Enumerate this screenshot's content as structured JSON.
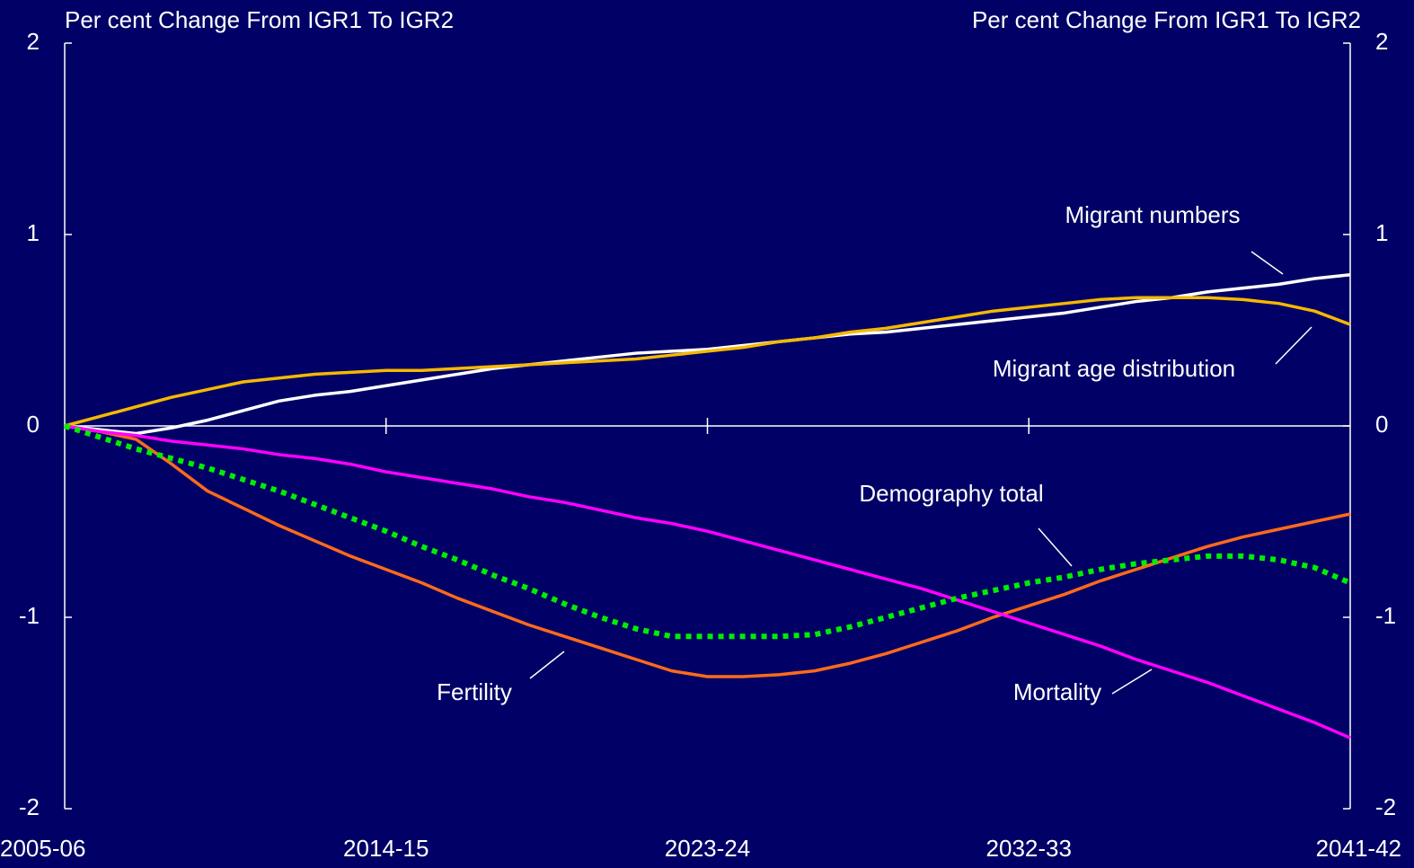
{
  "chart_data": {
    "type": "line",
    "y_label": "Per cent Change From IGR1 To IGR2",
    "y2_label": "Per cent Change From IGR1 To IGR2",
    "categories": [
      "2005-06",
      null,
      null,
      null,
      null,
      null,
      null,
      null,
      null,
      "2014-15",
      null,
      null,
      null,
      null,
      null,
      null,
      null,
      null,
      "2023-24",
      null,
      null,
      null,
      null,
      null,
      null,
      null,
      null,
      "2032-33",
      null,
      null,
      null,
      null,
      null,
      null,
      null,
      null,
      "2041-42"
    ],
    "ylim": [
      -2,
      2
    ],
    "yticks": [
      -2,
      -1,
      0,
      1,
      2
    ],
    "y2lim": [
      -2,
      2
    ],
    "y2ticks": [
      -2,
      -1,
      0,
      1,
      2
    ],
    "series": [
      {
        "name": "Migrant numbers",
        "color": "#ffffff",
        "dash": false,
        "values": [
          0,
          -0.02,
          -0.04,
          -0.01,
          0.03,
          0.08,
          0.13,
          0.16,
          0.18,
          0.21,
          0.24,
          0.27,
          0.3,
          0.32,
          0.34,
          0.36,
          0.38,
          0.39,
          0.4,
          0.42,
          0.44,
          0.46,
          0.48,
          0.49,
          0.51,
          0.53,
          0.55,
          0.57,
          0.59,
          0.62,
          0.65,
          0.67,
          0.7,
          0.72,
          0.74,
          0.77,
          0.79
        ]
      },
      {
        "name": "Migrant age distribution",
        "color": "#f5b800",
        "dash": false,
        "values": [
          0,
          0.05,
          0.1,
          0.15,
          0.19,
          0.23,
          0.25,
          0.27,
          0.28,
          0.29,
          0.29,
          0.3,
          0.31,
          0.32,
          0.33,
          0.34,
          0.35,
          0.37,
          0.39,
          0.41,
          0.44,
          0.46,
          0.49,
          0.51,
          0.54,
          0.57,
          0.6,
          0.62,
          0.64,
          0.66,
          0.67,
          0.67,
          0.67,
          0.66,
          0.64,
          0.6,
          0.53
        ]
      },
      {
        "name": "Fertility",
        "color": "#ff6a1a",
        "dash": false,
        "values": [
          0,
          -0.03,
          -0.07,
          -0.2,
          -0.34,
          -0.43,
          -0.52,
          -0.6,
          -0.68,
          -0.75,
          -0.82,
          -0.9,
          -0.97,
          -1.04,
          -1.1,
          -1.16,
          -1.22,
          -1.28,
          -1.31,
          -1.31,
          -1.3,
          -1.28,
          -1.24,
          -1.19,
          -1.13,
          -1.07,
          -1.0,
          -0.94,
          -0.88,
          -0.81,
          -0.75,
          -0.69,
          -0.63,
          -0.58,
          -0.54,
          -0.5,
          -0.46
        ]
      },
      {
        "name": "Mortality",
        "color": "#ff00ff",
        "dash": false,
        "values": [
          0,
          -0.03,
          -0.05,
          -0.08,
          -0.1,
          -0.12,
          -0.15,
          -0.17,
          -0.2,
          -0.24,
          -0.27,
          -0.3,
          -0.33,
          -0.37,
          -0.4,
          -0.44,
          -0.48,
          -0.51,
          -0.55,
          -0.6,
          -0.65,
          -0.7,
          -0.75,
          -0.8,
          -0.85,
          -0.91,
          -0.97,
          -1.03,
          -1.09,
          -1.15,
          -1.22,
          -1.28,
          -1.34,
          -1.41,
          -1.48,
          -1.55,
          -1.63
        ]
      },
      {
        "name": "Demography total",
        "color": "#00ee00",
        "dash": true,
        "values": [
          0,
          -0.06,
          -0.12,
          -0.17,
          -0.22,
          -0.28,
          -0.34,
          -0.41,
          -0.48,
          -0.55,
          -0.63,
          -0.7,
          -0.78,
          -0.85,
          -0.93,
          -1.0,
          -1.06,
          -1.1,
          -1.1,
          -1.1,
          -1.1,
          -1.09,
          -1.05,
          -1.0,
          -0.95,
          -0.9,
          -0.86,
          -0.82,
          -0.79,
          -0.75,
          -0.72,
          -0.7,
          -0.68,
          -0.68,
          -0.7,
          -0.74,
          -0.82
        ]
      }
    ]
  }
}
